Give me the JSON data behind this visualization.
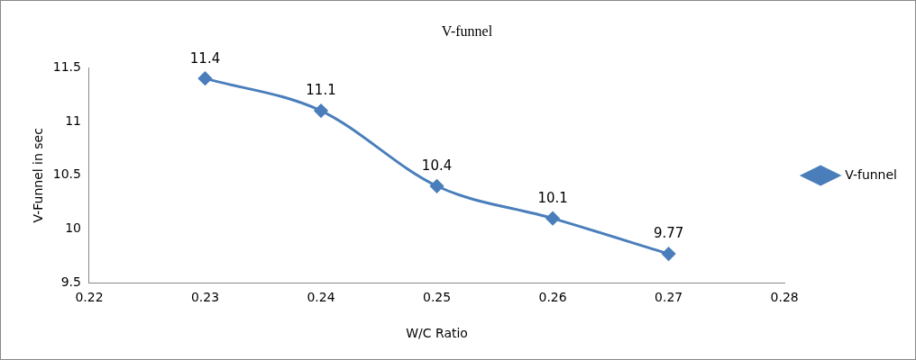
{
  "chart_data": {
    "type": "line",
    "title": "V-funnel",
    "xlabel": "W/C Ratio",
    "ylabel": "V-Funnel in sec",
    "x": [
      0.23,
      0.24,
      0.25,
      0.26,
      0.27
    ],
    "series": [
      {
        "name": "V-funnel",
        "color": "#4a7ebb",
        "values": [
          11.4,
          11.1,
          10.4,
          10.1,
          9.77
        ]
      }
    ],
    "xlim": [
      0.22,
      0.28
    ],
    "xticks": [
      0.22,
      0.23,
      0.24,
      0.25,
      0.26,
      0.27,
      0.28
    ],
    "ylim": [
      9.5,
      11.5
    ],
    "yticks": [
      9.5,
      10,
      10.5,
      11,
      11.5
    ],
    "grid": false,
    "legend": "right",
    "marker": "diamond",
    "line_style": "solid",
    "data_labels": true
  }
}
